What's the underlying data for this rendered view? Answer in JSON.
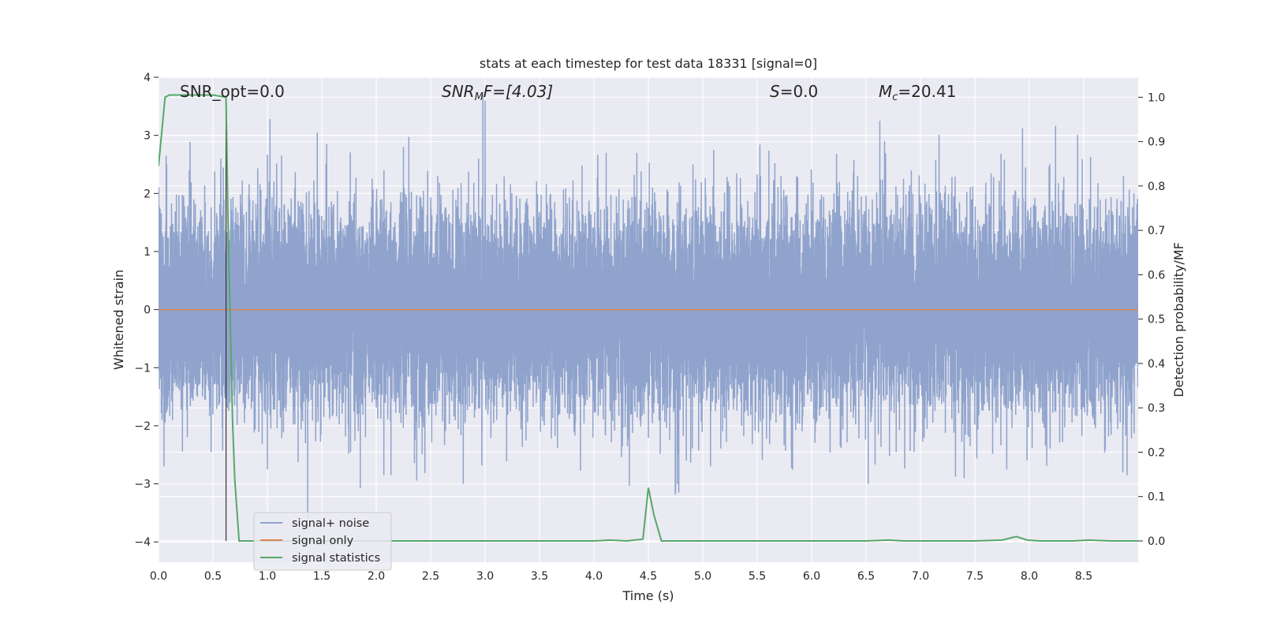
{
  "chart_data": {
    "type": "line",
    "title": "stats at each timestep for test data 18331 [signal=0]",
    "xlabel": "Time (s)",
    "ylabel": "Whitened strain",
    "y2label": "Detection probability/MF",
    "xlim": [
      0.0,
      9.0
    ],
    "ylim": [
      -4.35,
      4.0
    ],
    "y2lim": [
      -0.048,
      1.045
    ],
    "xticks": [
      "0.0",
      "0.5",
      "1.0",
      "1.5",
      "2.0",
      "2.5",
      "3.0",
      "3.5",
      "4.0",
      "4.5",
      "5.0",
      "5.5",
      "6.0",
      "6.5",
      "7.0",
      "7.5",
      "8.0",
      "8.5"
    ],
    "xtick_values": [
      0.0,
      0.5,
      1.0,
      1.5,
      2.0,
      2.5,
      3.0,
      3.5,
      4.0,
      4.5,
      5.0,
      5.5,
      6.0,
      6.5,
      7.0,
      7.5,
      8.0,
      8.5
    ],
    "yticks": [
      "4",
      "3",
      "2",
      "1",
      "0",
      "−1",
      "−2",
      "−3",
      "−4"
    ],
    "ytick_values": [
      4,
      3,
      2,
      1,
      0,
      -1,
      -2,
      -3,
      -4
    ],
    "y2ticks": [
      "1.0",
      "0.9",
      "0.8",
      "0.7",
      "0.6",
      "0.5",
      "0.4",
      "0.3",
      "0.2",
      "0.1",
      "0.0"
    ],
    "y2tick_values": [
      1.0,
      0.9,
      0.8,
      0.7,
      0.6,
      0.5,
      0.4,
      0.3,
      0.2,
      0.1,
      0.0
    ],
    "grid": true,
    "legend_position": "lower-left",
    "annotations": {
      "snr_opt": "SNR_opt=0.0",
      "snr_mf_main": "SNR",
      "snr_mf_sub": "M",
      "snr_mf_rest": "F=[4.03]",
      "s_main": "S",
      "s_rest": "=0.0",
      "mc_main": "M",
      "mc_sub": "c",
      "mc_rest": "=20.41"
    },
    "vline_x": 0.62,
    "series": [
      {
        "name": "signal+ noise",
        "color": "#8fa3cc",
        "kind": "noise",
        "sample_rate_hz": 2048,
        "duration_s": 9.0,
        "std": 0.85,
        "notable_peaks": [
          {
            "x": 0.07,
            "y": 2.65
          },
          {
            "x": 0.05,
            "y": -2.7
          },
          {
            "x": 1.0,
            "y": -2.75
          },
          {
            "x": 1.37,
            "y": -3.6
          },
          {
            "x": 2.07,
            "y": -2.85
          },
          {
            "x": 2.25,
            "y": 2.8
          },
          {
            "x": 2.8,
            "y": -3.0
          },
          {
            "x": 2.98,
            "y": 3.7
          },
          {
            "x": 3.0,
            "y": 3.6
          },
          {
            "x": 4.75,
            "y": -3.15
          },
          {
            "x": 4.78,
            "y": -3.15
          },
          {
            "x": 5.1,
            "y": 2.75
          },
          {
            "x": 6.52,
            "y": -3.0
          },
          {
            "x": 6.67,
            "y": 2.9
          }
        ]
      },
      {
        "name": "signal only",
        "color": "#dd8452",
        "kind": "constant",
        "y": 0.0
      },
      {
        "name": "signal statistics",
        "color": "#55a868",
        "axis": "right",
        "x": [
          0.0,
          0.06,
          0.1,
          0.15,
          0.3,
          0.5,
          0.62,
          0.64,
          0.68,
          0.7,
          0.74,
          0.8,
          1.0,
          2.0,
          3.0,
          4.0,
          4.15,
          4.3,
          4.45,
          4.5,
          4.55,
          4.62,
          4.7,
          5.0,
          6.0,
          6.5,
          6.7,
          6.85,
          7.5,
          7.75,
          7.88,
          7.98,
          8.1,
          8.4,
          8.55,
          8.75,
          9.0
        ],
        "values": [
          0.845,
          1.0,
          1.005,
          1.005,
          1.005,
          1.005,
          1.0,
          0.7,
          0.27,
          0.14,
          0.0,
          0.0,
          0.0,
          0.0,
          0.0,
          0.0,
          0.002,
          0.0,
          0.004,
          0.12,
          0.06,
          0.0,
          0.0,
          0.0,
          0.0,
          0.0,
          0.002,
          0.0,
          0.0,
          0.002,
          0.01,
          0.002,
          0.0,
          0.0,
          0.002,
          0.0,
          0.0
        ]
      }
    ]
  }
}
